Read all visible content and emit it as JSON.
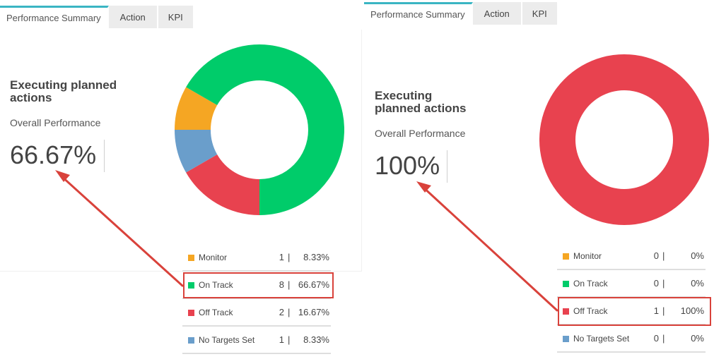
{
  "panels": [
    {
      "tabs": [
        "Performance Summary",
        "Action",
        "KPI"
      ],
      "heading": "Executing planned actions",
      "subheading": "Overall Performance",
      "value": "66.67%",
      "legend": [
        {
          "name": "Monitor",
          "count": "1",
          "sep": "|",
          "pct": "8.33%",
          "color": "#f5a623"
        },
        {
          "name": "On Track",
          "count": "8",
          "sep": "|",
          "pct": "66.67%",
          "color": "#00cc6a"
        },
        {
          "name": "Off Track",
          "count": "2",
          "sep": "|",
          "pct": "16.67%",
          "color": "#e8424f"
        },
        {
          "name": "No Targets Set",
          "count": "1",
          "sep": "|",
          "pct": "8.33%",
          "color": "#6a9ecb"
        }
      ],
      "highlighted": "On Track"
    },
    {
      "tabs": [
        "Performance Summary",
        "Action",
        "KPI"
      ],
      "heading": "Executing planned actions",
      "subheading": "Overall Performance",
      "value": "100%",
      "legend": [
        {
          "name": "Monitor",
          "count": "0",
          "sep": "|",
          "pct": "0%",
          "color": "#f5a623"
        },
        {
          "name": "On Track",
          "count": "0",
          "sep": "|",
          "pct": "0%",
          "color": "#00cc6a"
        },
        {
          "name": "Off Track",
          "count": "1",
          "sep": "|",
          "pct": "100%",
          "color": "#e8424f"
        },
        {
          "name": "No Targets Set",
          "count": "0",
          "sep": "|",
          "pct": "0%",
          "color": "#6a9ecb"
        }
      ],
      "highlighted": "Off Track"
    }
  ],
  "annotation_color": "#d9423b",
  "tab_accent_color": "#3ab5c3"
}
